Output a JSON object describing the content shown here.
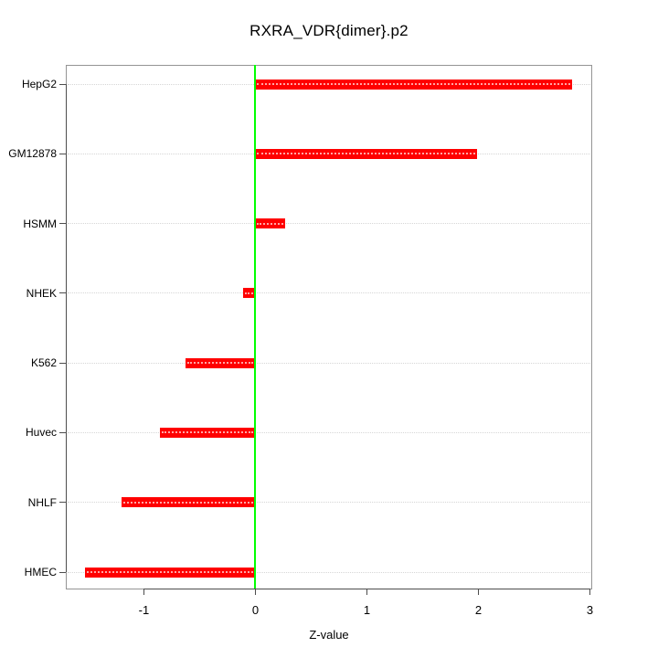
{
  "chart_data": {
    "type": "bar",
    "orientation": "horizontal",
    "title": "RXRA_VDR{dimer}.p2",
    "xlabel": "Z-value",
    "ylabel": "",
    "categories": [
      "HepG2",
      "GM12878",
      "HSMM",
      "NHEK",
      "K562",
      "Huvec",
      "NHLF",
      "HMEC"
    ],
    "values": [
      2.84,
      1.99,
      0.27,
      -0.11,
      -0.63,
      -0.86,
      -1.2,
      -1.53
    ],
    "xlim": [
      -1.7,
      3.02
    ],
    "xticks": [
      -1,
      0,
      1,
      2,
      3
    ],
    "xtick_labels": [
      "-1",
      "0",
      "1",
      "2",
      "3"
    ],
    "grid": "horizontal dotted line at each category, full plot width",
    "legend_position": "none",
    "zero_reference_line": 0,
    "colors": {
      "bar": "#ff0000",
      "zero_line": "#00ff00",
      "gridline": "#d6d6d6",
      "box": "#949494",
      "axis": "#4d4d4d",
      "text": "#000000",
      "background": "#ffffff"
    }
  }
}
